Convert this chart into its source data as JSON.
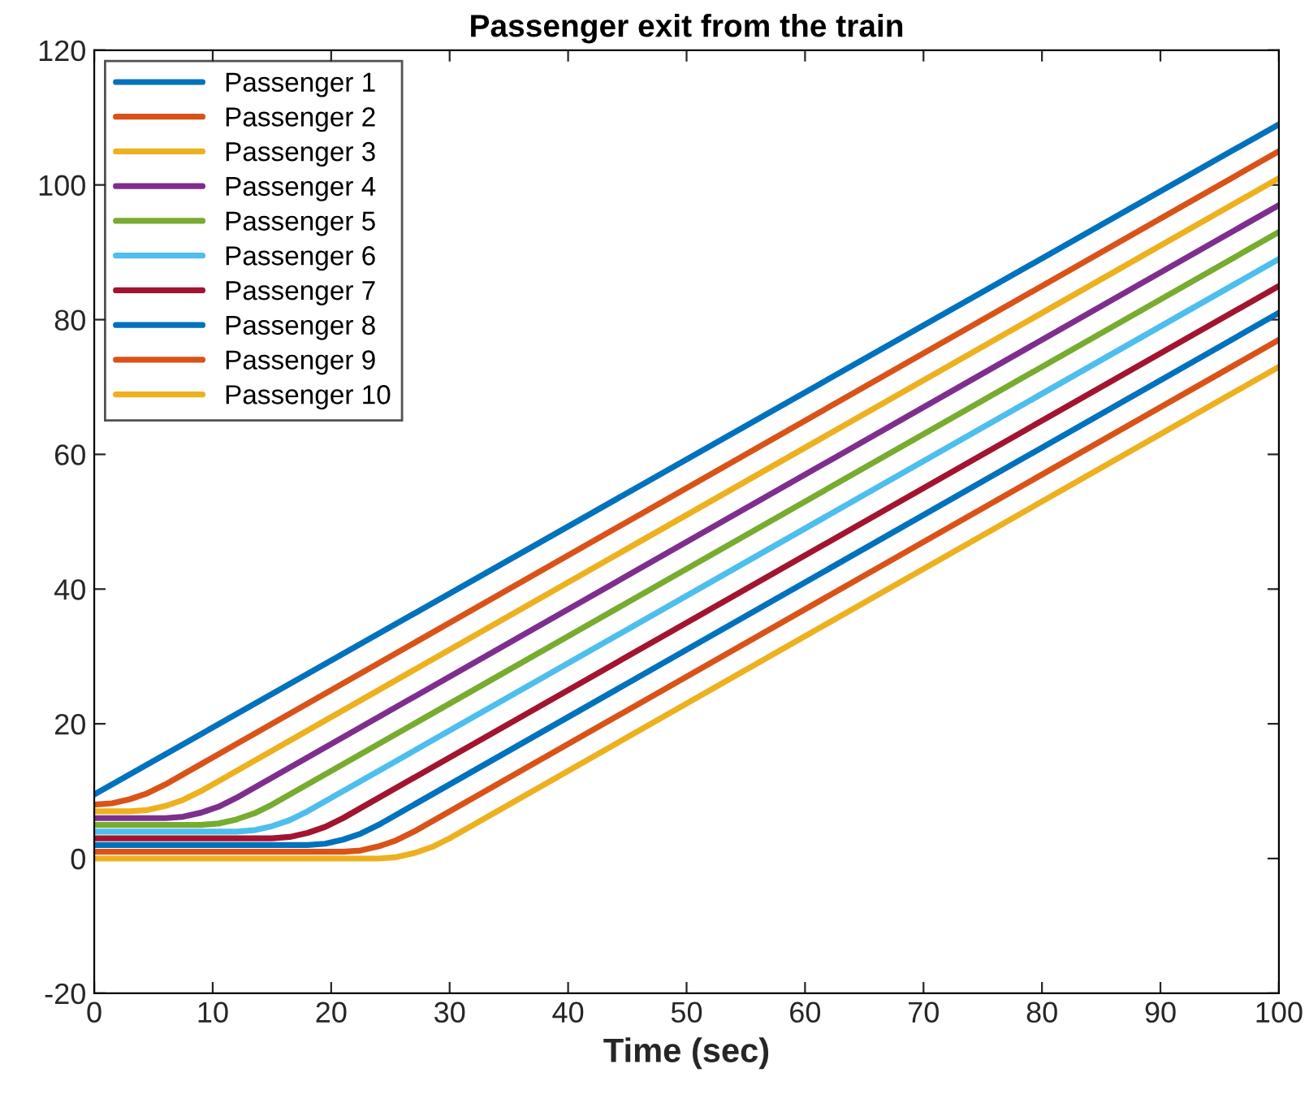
{
  "chart_data": {
    "type": "line",
    "title": "Passenger exit from the train",
    "xlabel": "Time (sec)",
    "xlim": [
      0,
      100
    ],
    "ylim": [
      -20,
      120
    ],
    "xticks": [
      0,
      10,
      20,
      30,
      40,
      50,
      60,
      70,
      80,
      90,
      100
    ],
    "yticks": [
      -20,
      0,
      20,
      40,
      60,
      80,
      100,
      120
    ],
    "grid": false,
    "legend": "top left",
    "line_style": "solid",
    "marker": "none",
    "series": [
      {
        "name": "Passenger 1",
        "color": "#0072bd",
        "x": [
          0,
          100
        ],
        "values": [
          9.5,
          109
        ]
      },
      {
        "name": "Passenger 2",
        "color": "#d95319",
        "x": [
          0,
          1.5,
          3,
          4.5,
          6,
          100
        ],
        "values": [
          8,
          8.2,
          8.8,
          9.7,
          11,
          105
        ]
      },
      {
        "name": "Passenger 3",
        "color": "#edb120",
        "x": [
          0,
          3,
          4.5,
          6,
          7.5,
          9,
          100
        ],
        "values": [
          7,
          7,
          7.2,
          7.8,
          8.7,
          10,
          101
        ]
      },
      {
        "name": "Passenger 4",
        "color": "#7e2f8e",
        "x": [
          0,
          6,
          7.5,
          9,
          10.5,
          12,
          100
        ],
        "values": [
          6,
          6,
          6.2,
          6.8,
          7.7,
          9,
          97
        ]
      },
      {
        "name": "Passenger 5",
        "color": "#77ac30",
        "x": [
          0,
          9,
          10.5,
          12,
          13.5,
          15,
          100
        ],
        "values": [
          5,
          5,
          5.2,
          5.8,
          6.7,
          8,
          93
        ]
      },
      {
        "name": "Passenger 6",
        "color": "#4dbeee",
        "x": [
          0,
          12,
          13.5,
          15,
          16.5,
          18,
          100
        ],
        "values": [
          4,
          4,
          4.2,
          4.8,
          5.7,
          7,
          89
        ]
      },
      {
        "name": "Passenger 7",
        "color": "#a2142f",
        "x": [
          0,
          15,
          16.5,
          18,
          19.5,
          21,
          100
        ],
        "values": [
          3,
          3,
          3.2,
          3.8,
          4.7,
          6,
          85
        ]
      },
      {
        "name": "Passenger 8",
        "color": "#0072bd",
        "x": [
          0,
          18,
          19.5,
          21,
          22.5,
          24,
          100
        ],
        "values": [
          2,
          2,
          2.2,
          2.8,
          3.7,
          5,
          81
        ]
      },
      {
        "name": "Passenger 9",
        "color": "#d95319",
        "x": [
          0,
          21,
          22.5,
          24,
          25.5,
          27,
          100
        ],
        "values": [
          1,
          1,
          1.2,
          1.8,
          2.7,
          4,
          77
        ]
      },
      {
        "name": "Passenger 10",
        "color": "#edb120",
        "x": [
          0,
          24,
          25.5,
          27,
          28.5,
          30,
          100
        ],
        "values": [
          0,
          0,
          0.2,
          0.8,
          1.7,
          3,
          73
        ]
      }
    ]
  }
}
